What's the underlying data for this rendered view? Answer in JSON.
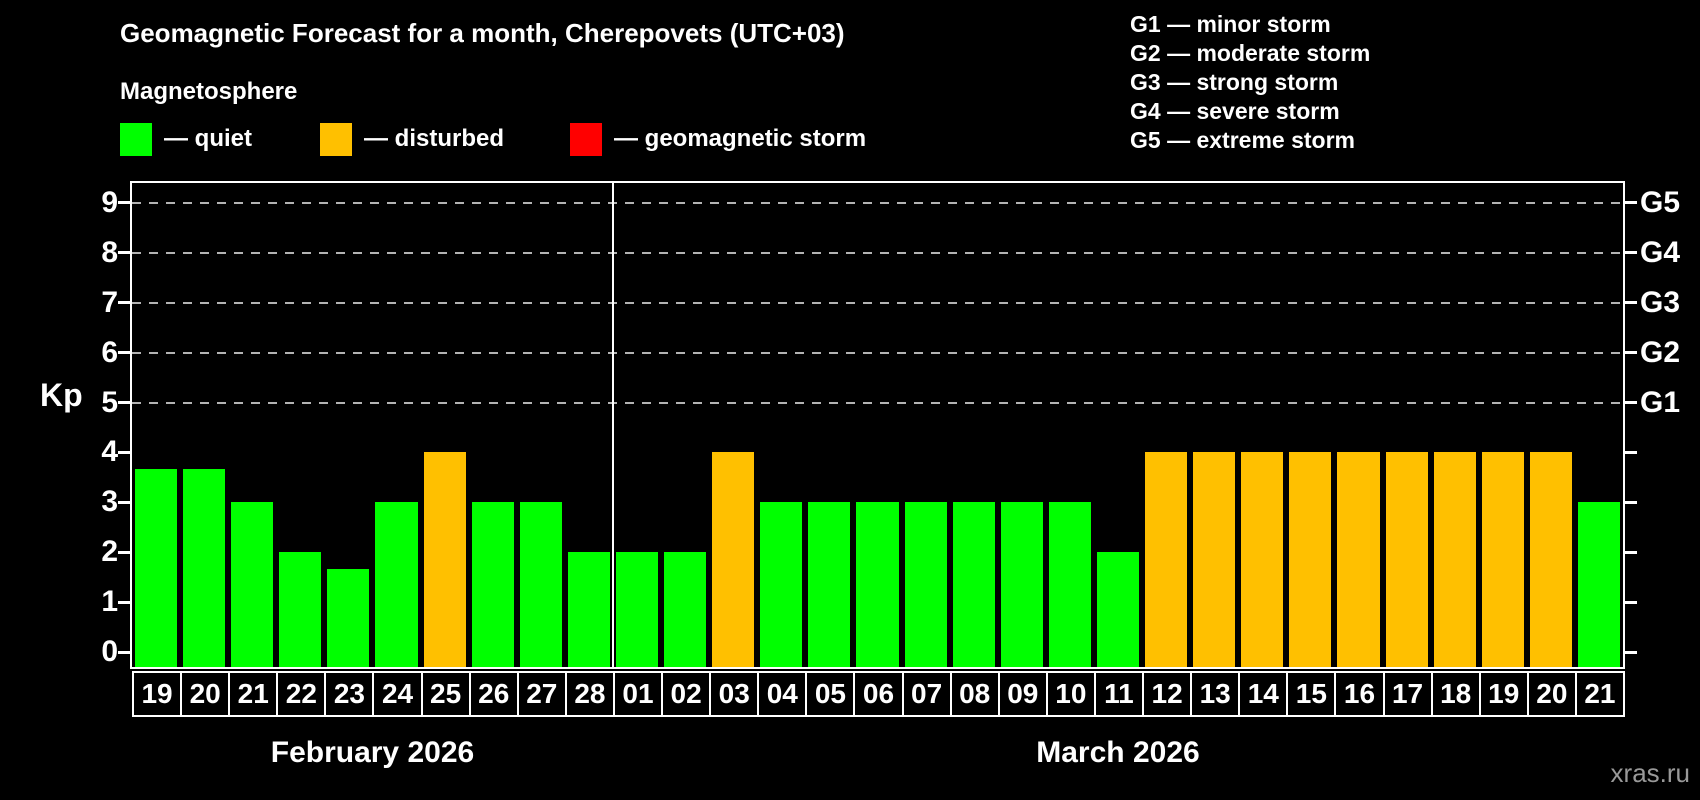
{
  "title": "Geomagnetic Forecast for a month, Cherepovets (UTC+03)",
  "legend": {
    "heading": "Magnetosphere",
    "items": [
      {
        "name": "quiet",
        "label": "— quiet",
        "color": "#00ff00"
      },
      {
        "name": "disturbed",
        "label": "— disturbed",
        "color": "#ffc000"
      },
      {
        "name": "storm",
        "label": "— geomagnetic storm",
        "color": "#ff0000"
      }
    ]
  },
  "storm_scale": [
    {
      "label": "G1 — minor storm"
    },
    {
      "label": "G2 — moderate storm"
    },
    {
      "label": "G3 — strong storm"
    },
    {
      "label": "G4 — severe storm"
    },
    {
      "label": "G5 — extreme storm"
    }
  ],
  "watermark": "xras.ru",
  "chart_data": {
    "type": "bar",
    "title": "Geomagnetic Forecast for a month, Cherepovets (UTC+03)",
    "ylabel": "Kp",
    "ylim": [
      -0.3,
      9.4
    ],
    "y_ticks": [
      0,
      1,
      2,
      3,
      4,
      5,
      6,
      7,
      8,
      9
    ],
    "gridlines_at_kp": [
      5,
      6,
      7,
      8,
      9
    ],
    "grid": "dashed, only at G-storm levels 5-9",
    "legend_position": "top",
    "right_axis": [
      {
        "label": "G1",
        "kp": 5
      },
      {
        "label": "G2",
        "kp": 6
      },
      {
        "label": "G3",
        "kp": 7
      },
      {
        "label": "G4",
        "kp": 8
      },
      {
        "label": "G5",
        "kp": 9
      }
    ],
    "status_colors": {
      "quiet": "#00ff00",
      "disturbed": "#ffc000",
      "storm": "#ff0000"
    },
    "months": [
      {
        "name": "February 2026",
        "days": [
          {
            "date": "19",
            "kp": 3.67,
            "status": "quiet"
          },
          {
            "date": "20",
            "kp": 3.67,
            "status": "quiet"
          },
          {
            "date": "21",
            "kp": 3.0,
            "status": "quiet"
          },
          {
            "date": "22",
            "kp": 2.0,
            "status": "quiet"
          },
          {
            "date": "23",
            "kp": 1.67,
            "status": "quiet"
          },
          {
            "date": "24",
            "kp": 3.0,
            "status": "quiet"
          },
          {
            "date": "25",
            "kp": 4.0,
            "status": "disturbed"
          },
          {
            "date": "26",
            "kp": 3.0,
            "status": "quiet"
          },
          {
            "date": "27",
            "kp": 3.0,
            "status": "quiet"
          },
          {
            "date": "28",
            "kp": 2.0,
            "status": "quiet"
          }
        ]
      },
      {
        "name": "March 2026",
        "days": [
          {
            "date": "01",
            "kp": 2.0,
            "status": "quiet"
          },
          {
            "date": "02",
            "kp": 2.0,
            "status": "quiet"
          },
          {
            "date": "03",
            "kp": 4.0,
            "status": "disturbed"
          },
          {
            "date": "04",
            "kp": 3.0,
            "status": "quiet"
          },
          {
            "date": "05",
            "kp": 3.0,
            "status": "quiet"
          },
          {
            "date": "06",
            "kp": 3.0,
            "status": "quiet"
          },
          {
            "date": "07",
            "kp": 3.0,
            "status": "quiet"
          },
          {
            "date": "08",
            "kp": 3.0,
            "status": "quiet"
          },
          {
            "date": "09",
            "kp": 3.0,
            "status": "quiet"
          },
          {
            "date": "10",
            "kp": 3.0,
            "status": "quiet"
          },
          {
            "date": "11",
            "kp": 2.0,
            "status": "quiet"
          },
          {
            "date": "12",
            "kp": 4.0,
            "status": "disturbed"
          },
          {
            "date": "13",
            "kp": 4.0,
            "status": "disturbed"
          },
          {
            "date": "14",
            "kp": 4.0,
            "status": "disturbed"
          },
          {
            "date": "15",
            "kp": 4.0,
            "status": "disturbed"
          },
          {
            "date": "16",
            "kp": 4.0,
            "status": "disturbed"
          },
          {
            "date": "17",
            "kp": 4.0,
            "status": "disturbed"
          },
          {
            "date": "18",
            "kp": 4.0,
            "status": "disturbed"
          },
          {
            "date": "19",
            "kp": 4.0,
            "status": "disturbed"
          },
          {
            "date": "20",
            "kp": 4.0,
            "status": "disturbed"
          },
          {
            "date": "21",
            "kp": 3.0,
            "status": "quiet"
          }
        ]
      }
    ]
  }
}
